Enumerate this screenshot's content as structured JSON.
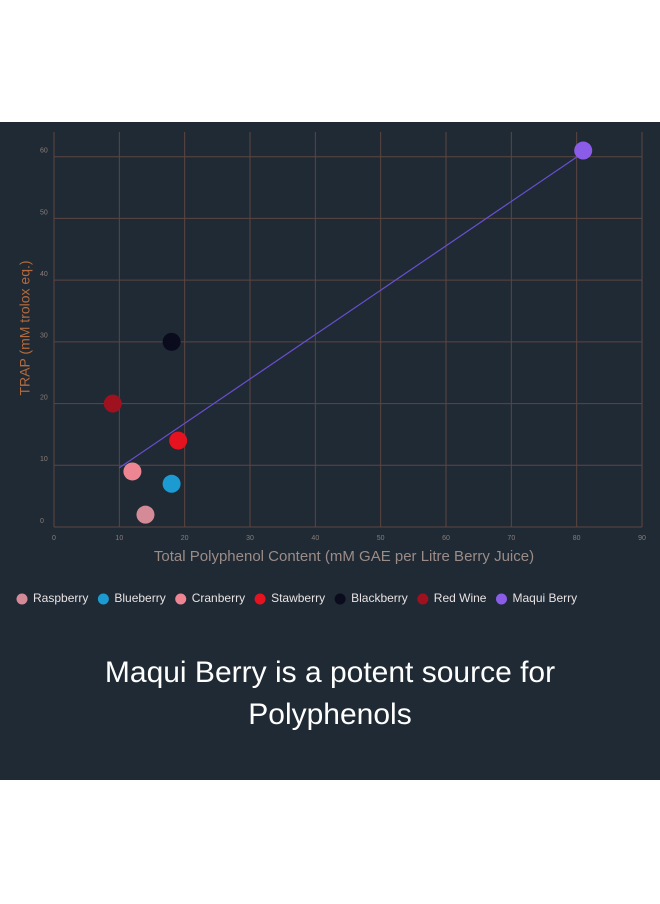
{
  "chart_data": {
    "type": "scatter",
    "xlabel": "Total Polyphenol Content (mM GAE per Litre Berry Juice)",
    "ylabel": "TRAP (mM trolox eq.)",
    "xlim": [
      0,
      90
    ],
    "xticks": [
      0,
      10,
      20,
      30,
      40,
      50,
      60,
      70,
      80,
      90
    ],
    "ylim": [
      0,
      64
    ],
    "yticks": [
      0,
      10,
      20,
      30,
      40,
      50,
      60
    ],
    "grid": true,
    "series": [
      {
        "name": "Raspberry",
        "color": "#d58b97",
        "x": [
          14
        ],
        "values": [
          2
        ]
      },
      {
        "name": "Blueberry",
        "color": "#1b9bd1",
        "x": [
          18
        ],
        "values": [
          7
        ]
      },
      {
        "name": "Cranberry",
        "color": "#ee8592",
        "x": [
          12
        ],
        "values": [
          9
        ]
      },
      {
        "name": "Stawberry",
        "color": "#e5121f",
        "x": [
          19
        ],
        "values": [
          14
        ]
      },
      {
        "name": "Blackberry",
        "color": "#0b0b1e",
        "x": [
          18
        ],
        "values": [
          30
        ]
      },
      {
        "name": "Red Wine",
        "color": "#a0111f",
        "x": [
          9
        ],
        "values": [
          20
        ]
      },
      {
        "name": "Maqui Berry",
        "color": "#8b5ce8",
        "x": [
          81
        ],
        "values": [
          61
        ]
      }
    ],
    "trendline": {
      "color": "#6a4fd0",
      "x": [
        10,
        80.5
      ],
      "values": [
        9.6,
        60.3
      ]
    },
    "caption": "Maqui Berry is a potent source for Polyphenols"
  }
}
